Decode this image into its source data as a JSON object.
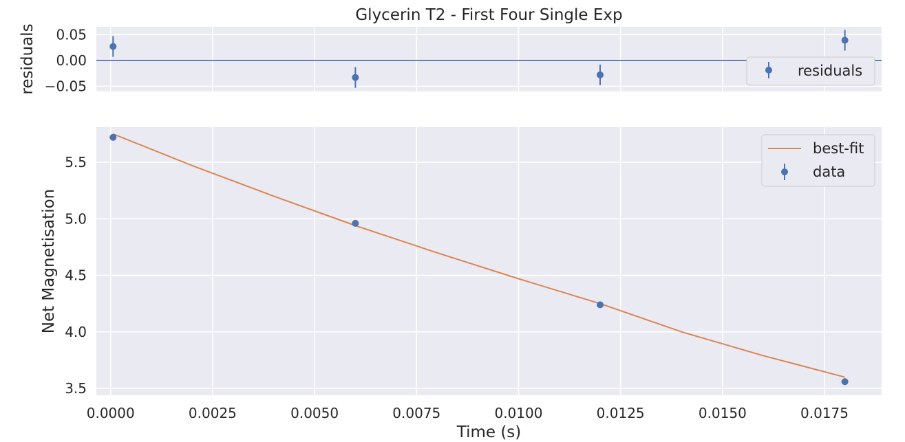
{
  "chart_data": [
    {
      "type": "scatter",
      "title": "Glycerin T2 - First Four Single Exp",
      "ylabel": "residuals",
      "xlabel": "",
      "xlim": [
        -0.00035,
        0.0189
      ],
      "ylim": [
        -0.06,
        0.065
      ],
      "yticks": [
        0.05,
        0.0,
        -0.05
      ],
      "ytick_labels": [
        "0.05",
        "0.00",
        "−0.05"
      ],
      "xticks": [
        0.0,
        0.0025,
        0.005,
        0.0075,
        0.01,
        0.0125,
        0.015,
        0.0175
      ],
      "grid": true,
      "reference_line": 0.0,
      "legend_placement": "right",
      "series": [
        {
          "name": "residuals",
          "x": [
            6e-05,
            0.006,
            0.012,
            0.018
          ],
          "y": [
            0.027,
            -0.033,
            -0.028,
            0.039
          ],
          "yerr": [
            0.02,
            0.02,
            0.02,
            0.02
          ],
          "color": "#4c72b0"
        }
      ]
    },
    {
      "type": "scatter",
      "title": "",
      "xlabel": "Time (s)",
      "ylabel": "Net Magnetisation",
      "xlim": [
        -0.00035,
        0.0189
      ],
      "ylim": [
        3.44,
        5.81
      ],
      "xticks": [
        0.0,
        0.0025,
        0.005,
        0.0075,
        0.01,
        0.0125,
        0.015,
        0.0175
      ],
      "xtick_labels": [
        "0.0000",
        "0.0025",
        "0.0050",
        "0.0075",
        "0.0100",
        "0.0125",
        "0.0150",
        "0.0175"
      ],
      "yticks": [
        3.5,
        4.0,
        4.5,
        5.0,
        5.5
      ],
      "ytick_labels": [
        "3.5",
        "4.0",
        "4.5",
        "5.0",
        "5.5"
      ],
      "grid": true,
      "legend_placement": "top-right",
      "series": [
        {
          "name": "best-fit",
          "kind": "line",
          "x": [
            6e-05,
            0.002,
            0.004,
            0.006,
            0.008,
            0.01,
            0.012,
            0.014,
            0.016,
            0.018
          ],
          "y": [
            5.75,
            5.47,
            5.2,
            4.94,
            4.7,
            4.47,
            4.25,
            4.0,
            3.79,
            3.6
          ],
          "color": "#dd8452"
        },
        {
          "name": "data",
          "kind": "errorbar",
          "x": [
            6e-05,
            0.006,
            0.012,
            0.018
          ],
          "y": [
            5.72,
            4.96,
            4.24,
            3.56
          ],
          "yerr": [
            0.02,
            0.02,
            0.02,
            0.02
          ],
          "color": "#4c72b0"
        }
      ]
    }
  ]
}
